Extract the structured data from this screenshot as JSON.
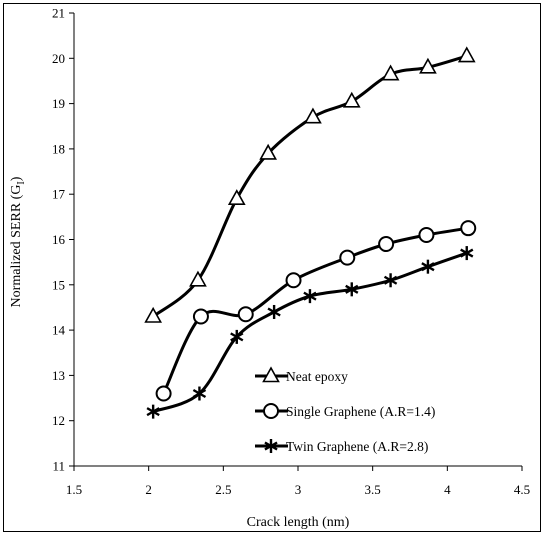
{
  "chart_data": {
    "type": "line",
    "xlabel": "Crack length (nm)",
    "ylabel_main": "Normalized SERR (G",
    "ylabel_sub": "I",
    "ylabel_close": ")",
    "xlim": [
      1.5,
      4.5
    ],
    "ylim": [
      11,
      21
    ],
    "xticks": [
      "1.5",
      "2",
      "2.5",
      "3",
      "3.5",
      "4",
      "4.5"
    ],
    "yticks": [
      "11",
      "12",
      "13",
      "14",
      "15",
      "16",
      "17",
      "18",
      "19",
      "20",
      "21"
    ],
    "grid": false,
    "legend_position": "bottom-right",
    "series": [
      {
        "name": "Neat epoxy",
        "marker": "triangle",
        "x": [
          2.03,
          2.33,
          2.59,
          2.8,
          3.1,
          3.36,
          3.62,
          3.87,
          4.13
        ],
        "y": [
          14.3,
          15.1,
          16.9,
          17.9,
          18.7,
          19.05,
          19.65,
          19.8,
          20.05
        ]
      },
      {
        "name": "Single Graphene (A.R=1.4)",
        "marker": "circle",
        "x": [
          2.1,
          2.35,
          2.65,
          2.97,
          3.33,
          3.59,
          3.86,
          4.14
        ],
        "y": [
          12.6,
          14.3,
          14.35,
          15.1,
          15.6,
          15.9,
          16.1,
          16.25
        ]
      },
      {
        "name": "Twin Graphene (A.R=2.8)",
        "marker": "star",
        "x": [
          2.03,
          2.34,
          2.59,
          2.84,
          3.08,
          3.36,
          3.62,
          3.87,
          4.13
        ],
        "y": [
          12.2,
          12.6,
          13.85,
          14.4,
          14.75,
          14.9,
          15.1,
          15.4,
          15.7
        ]
      }
    ]
  }
}
